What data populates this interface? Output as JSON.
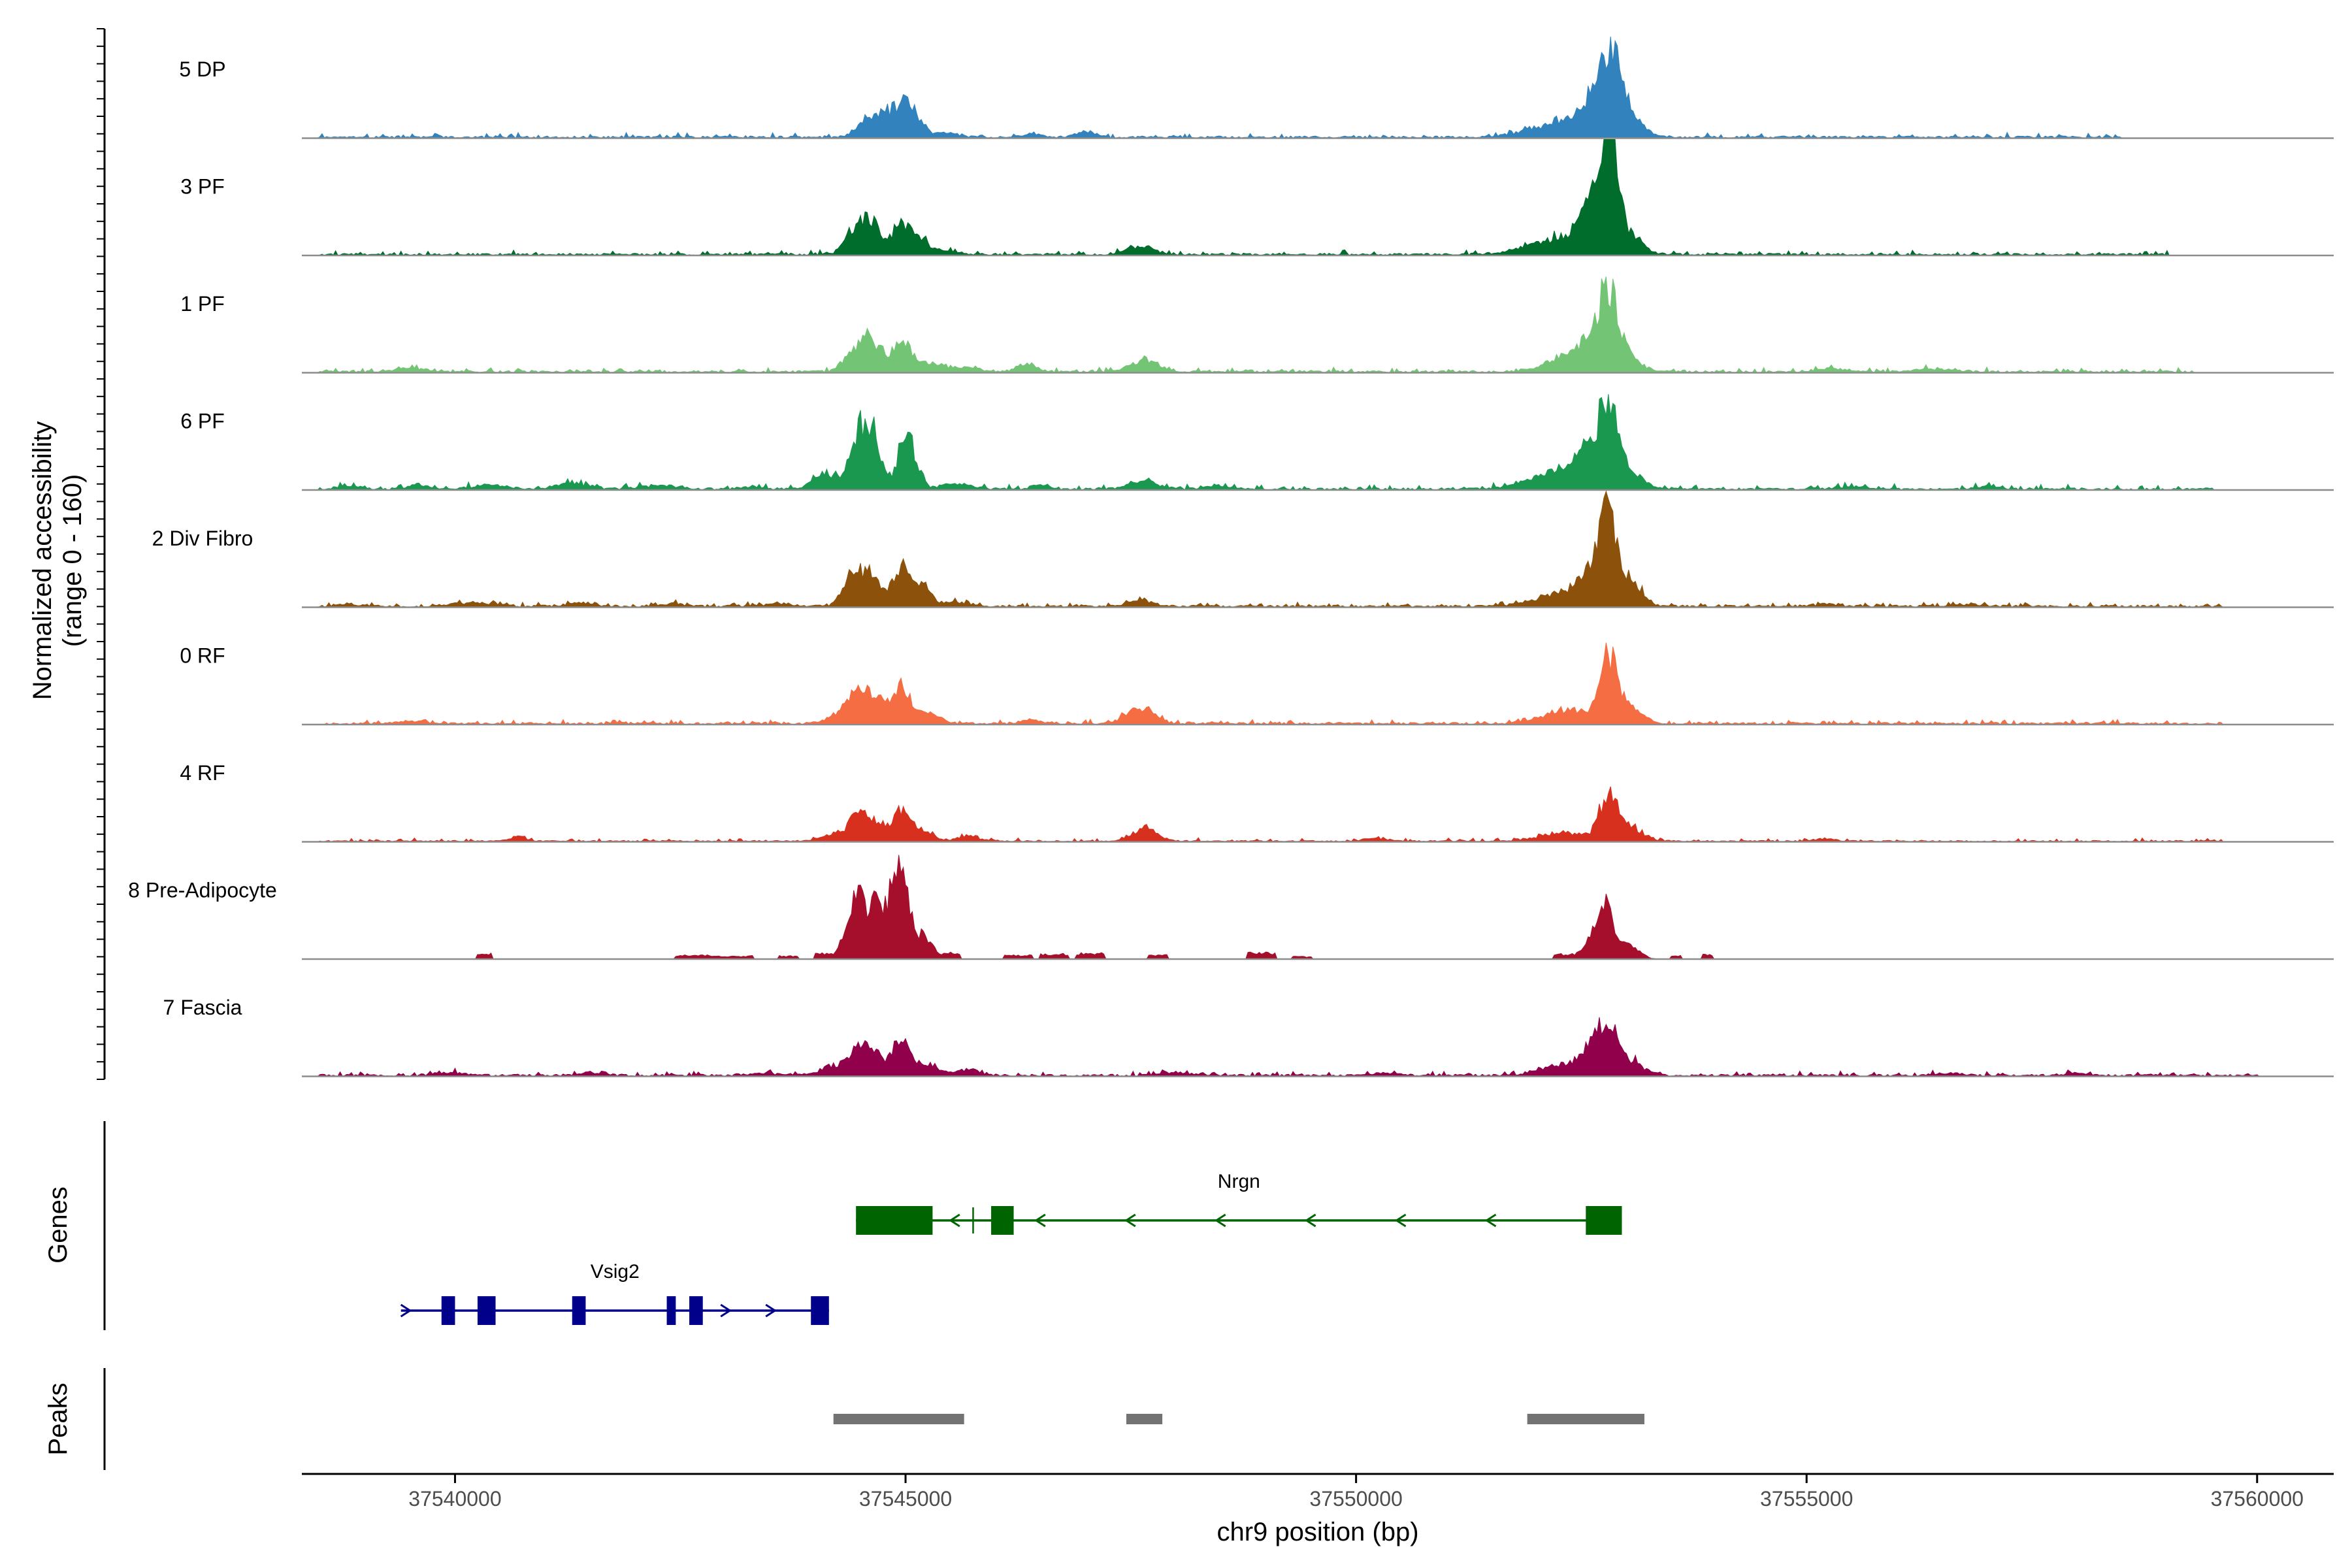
{
  "chart_data": {
    "type": "area",
    "title": "",
    "ylabel": "Normalized accessibility",
    "ylabel_range": "(range 0 - 160)",
    "xlabel": "chr9 position (bp)",
    "xlim": [
      37538300,
      37560850
    ],
    "ylim": [
      0,
      160
    ],
    "x_ticks": [
      {
        "value": 37540000,
        "label": "37540000"
      },
      {
        "value": 37545000,
        "label": "37545000"
      },
      {
        "value": 37550000,
        "label": "37550000"
      },
      {
        "value": 37555000,
        "label": "37555000"
      },
      {
        "value": 37560000,
        "label": "37560000"
      }
    ],
    "coverage_x_range": [
      37538300,
      37560850
    ],
    "tracks": [
      {
        "name": "5 DP",
        "color": "#3182BD",
        "baseline": 3,
        "noise": 5,
        "right_end": 37558500,
        "peaks": [
          [
            37544600,
            25,
            130
          ],
          [
            37544780,
            16,
            90
          ],
          [
            37544950,
            38,
            100
          ],
          [
            37545100,
            24,
            90
          ],
          [
            37545400,
            6,
            160
          ],
          [
            37546400,
            4,
            120
          ],
          [
            37547000,
            8,
            100
          ],
          [
            37552300,
            20,
            350
          ],
          [
            37552700,
            55,
            170
          ],
          [
            37552850,
            70,
            110
          ],
          [
            37553050,
            22,
            140
          ]
        ]
      },
      {
        "name": "3 PF",
        "color": "#006D2C",
        "baseline": 3,
        "noise": 5,
        "right_end": 37559000,
        "peaks": [
          [
            37544500,
            45,
            130
          ],
          [
            37544650,
            20,
            80
          ],
          [
            37544950,
            40,
            100
          ],
          [
            37545150,
            20,
            80
          ],
          [
            37545400,
            6,
            160
          ],
          [
            37547600,
            12,
            150
          ],
          [
            37552300,
            22,
            360
          ],
          [
            37552700,
            75,
            160
          ],
          [
            37552800,
            110,
            90
          ],
          [
            37553050,
            20,
            140
          ]
        ]
      },
      {
        "name": "1 PF",
        "color": "#74C476",
        "baseline": 3,
        "noise": 5,
        "right_end": 37559300,
        "peaks": [
          [
            37539500,
            6,
            160
          ],
          [
            37544500,
            40,
            140
          ],
          [
            37544650,
            20,
            80
          ],
          [
            37544950,
            40,
            110
          ],
          [
            37545300,
            12,
            150
          ],
          [
            37545700,
            5,
            140
          ],
          [
            37546350,
            10,
            110
          ],
          [
            37547650,
            16,
            150
          ],
          [
            37552200,
            14,
            170
          ],
          [
            37552600,
            40,
            180
          ],
          [
            37552800,
            90,
            100
          ],
          [
            37553000,
            20,
            150
          ],
          [
            37555300,
            4,
            200
          ],
          [
            37556400,
            4,
            200
          ]
        ]
      },
      {
        "name": "6 PF",
        "color": "#1A9850",
        "baseline": 3,
        "noise": 6,
        "right_end": 37559500,
        "peaks": [
          [
            37538800,
            4,
            120
          ],
          [
            37539600,
            4,
            150
          ],
          [
            37540400,
            6,
            180
          ],
          [
            37541300,
            7,
            200
          ],
          [
            37542300,
            5,
            200
          ],
          [
            37543300,
            3,
            120
          ],
          [
            37544100,
            20,
            120
          ],
          [
            37544500,
            80,
            120
          ],
          [
            37544650,
            45,
            80
          ],
          [
            37544980,
            55,
            90
          ],
          [
            37545100,
            30,
            70
          ],
          [
            37545550,
            8,
            160
          ],
          [
            37546500,
            6,
            100
          ],
          [
            37547650,
            12,
            150
          ],
          [
            37548500,
            4,
            160
          ],
          [
            37552300,
            25,
            340
          ],
          [
            37552600,
            40,
            150
          ],
          [
            37552800,
            90,
            100
          ],
          [
            37553050,
            22,
            140
          ],
          [
            37555500,
            3,
            200
          ],
          [
            37557000,
            4,
            120
          ]
        ]
      },
      {
        "name": "2 Div Fibro",
        "color": "#8C510A",
        "baseline": 3,
        "noise": 5,
        "right_end": 37559600,
        "peaks": [
          [
            37538800,
            3,
            150
          ],
          [
            37540200,
            5,
            180
          ],
          [
            37541400,
            4,
            150
          ],
          [
            37542400,
            3,
            150
          ],
          [
            37543600,
            4,
            150
          ],
          [
            37544450,
            50,
            120
          ],
          [
            37544650,
            30,
            80
          ],
          [
            37544950,
            55,
            100
          ],
          [
            37545200,
            25,
            80
          ],
          [
            37545500,
            6,
            140
          ],
          [
            37547600,
            10,
            120
          ],
          [
            37552300,
            18,
            300
          ],
          [
            37552650,
            50,
            150
          ],
          [
            37552800,
            90,
            90
          ],
          [
            37553050,
            35,
            120
          ],
          [
            37555200,
            3,
            150
          ],
          [
            37556800,
            3,
            150
          ]
        ]
      },
      {
        "name": "0 RF",
        "color": "#F46D43",
        "baseline": 3,
        "noise": 5,
        "right_end": 37559600,
        "peaks": [
          [
            37539500,
            3,
            160
          ],
          [
            37544300,
            12,
            150
          ],
          [
            37544500,
            45,
            120
          ],
          [
            37544700,
            22,
            80
          ],
          [
            37544950,
            50,
            100
          ],
          [
            37545250,
            15,
            120
          ],
          [
            37546400,
            5,
            100
          ],
          [
            37547600,
            22,
            150
          ],
          [
            37552400,
            18,
            300
          ],
          [
            37552800,
            80,
            90
          ],
          [
            37553000,
            25,
            150
          ]
        ]
      },
      {
        "name": "4 RF",
        "color": "#D7301F",
        "baseline": 2,
        "noise": 4,
        "right_end": 37559600,
        "peaks": [
          [
            37540700,
            6,
            80
          ],
          [
            37544200,
            10,
            140
          ],
          [
            37544500,
            38,
            110
          ],
          [
            37544700,
            18,
            80
          ],
          [
            37544950,
            40,
            100
          ],
          [
            37545200,
            12,
            120
          ],
          [
            37545700,
            7,
            120
          ],
          [
            37547650,
            18,
            130
          ],
          [
            37550200,
            4,
            120
          ],
          [
            37552300,
            12,
            250
          ],
          [
            37552800,
            60,
            100
          ],
          [
            37553050,
            20,
            130
          ],
          [
            37555200,
            3,
            120
          ]
        ]
      },
      {
        "name": "8 Pre-Adipocyte",
        "color": "#A50F2C",
        "baseline": 0,
        "noise": 10,
        "sparse": true,
        "right_end": 37554000,
        "blocks": [
          [
            37540250,
            37540400,
            9
          ],
          [
            37542450,
            37542800,
            6
          ],
          [
            37542800,
            37543300,
            5
          ],
          [
            37543600,
            37543800,
            5
          ],
          [
            37544000,
            37544300,
            9
          ],
          [
            37545400,
            37545600,
            10
          ],
          [
            37546100,
            37546400,
            6
          ],
          [
            37546500,
            37546800,
            8
          ],
          [
            37546900,
            37547200,
            9
          ],
          [
            37547700,
            37547900,
            7
          ],
          [
            37548800,
            37549100,
            10
          ],
          [
            37549300,
            37549500,
            4
          ],
          [
            37552200,
            37552400,
            8
          ],
          [
            37553500,
            37553600,
            6
          ],
          [
            37553850,
            37553950,
            7
          ]
        ],
        "peaks": [
          [
            37544450,
            90,
            110
          ],
          [
            37544650,
            60,
            60
          ],
          [
            37544950,
            110,
            90
          ],
          [
            37544800,
            50,
            70
          ],
          [
            37545200,
            30,
            100
          ],
          [
            37552650,
            35,
            120
          ],
          [
            37552800,
            55,
            80
          ],
          [
            37553050,
            18,
            100
          ]
        ]
      },
      {
        "name": "7 Fascia",
        "color": "#91004B",
        "baseline": 3,
        "noise": 5,
        "right_end": 37560000,
        "peaks": [
          [
            37539900,
            4,
            150
          ],
          [
            37541500,
            3,
            150
          ],
          [
            37543400,
            3,
            150
          ],
          [
            37544200,
            12,
            160
          ],
          [
            37544500,
            42,
            110
          ],
          [
            37544700,
            20,
            80
          ],
          [
            37544950,
            45,
            100
          ],
          [
            37545250,
            15,
            120
          ],
          [
            37545700,
            8,
            130
          ],
          [
            37548000,
            4,
            150
          ],
          [
            37550300,
            3,
            150
          ],
          [
            37552300,
            15,
            250
          ],
          [
            37552600,
            28,
            120
          ],
          [
            37552800,
            70,
            100
          ],
          [
            37553050,
            20,
            140
          ],
          [
            37556600,
            3,
            150
          ],
          [
            37558000,
            3,
            150
          ]
        ]
      }
    ],
    "genes": [
      {
        "name": "Nrgn",
        "color": "#006400",
        "strand": "-",
        "start": 37544450,
        "end": 37552950,
        "exons": [
          [
            37544450,
            37545300
          ],
          [
            37545950,
            37546200
          ],
          [
            37552550,
            37552950
          ]
        ],
        "arrows": [
          37545550,
          37546500,
          37547500,
          37548500,
          37549500,
          37550500,
          37551500
        ]
      },
      {
        "name": "Vsig2",
        "color": "#00008B",
        "strand": "+",
        "start": 37539400,
        "end": 37544150,
        "exons": [
          [
            37539850,
            37540000
          ],
          [
            37540250,
            37540450
          ],
          [
            37541300,
            37541450
          ],
          [
            37542350,
            37542450
          ],
          [
            37542600,
            37542750
          ],
          [
            37543950,
            37544150
          ]
        ],
        "arrows": [
          37539450,
          37543000,
          37543500
        ]
      }
    ],
    "peaks": [
      {
        "start": 37544200,
        "end": 37545650
      },
      {
        "start": 37547450,
        "end": 37547850
      },
      {
        "start": 37551900,
        "end": 37553200
      }
    ],
    "panel_labels": {
      "genes": "Genes",
      "peaks": "Peaks"
    }
  }
}
